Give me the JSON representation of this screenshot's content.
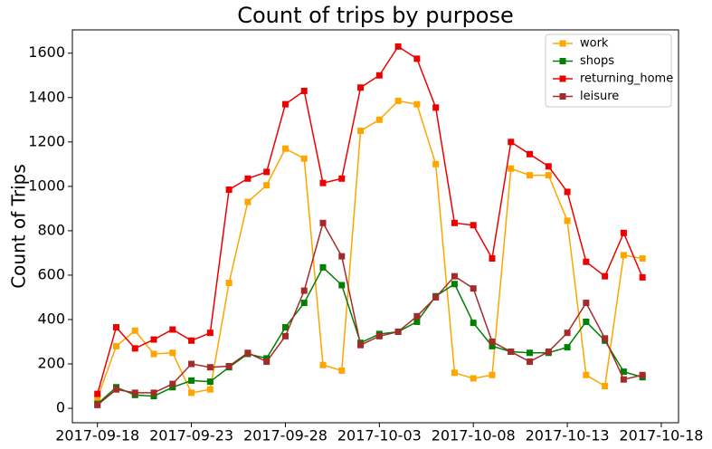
{
  "chart_data": {
    "type": "line",
    "title": "Count of trips by purpose",
    "y_label": "Count of Trips",
    "x": [
      "2017-09-18",
      "2017-09-19",
      "2017-09-20",
      "2017-09-21",
      "2017-09-22",
      "2017-09-23",
      "2017-09-24",
      "2017-09-25",
      "2017-09-26",
      "2017-09-27",
      "2017-09-28",
      "2017-09-29",
      "2017-09-30",
      "2017-10-01",
      "2017-10-02",
      "2017-10-03",
      "2017-10-04",
      "2017-10-05",
      "2017-10-06",
      "2017-10-07",
      "2017-10-08",
      "2017-10-09",
      "2017-10-10",
      "2017-10-11",
      "2017-10-12",
      "2017-10-13",
      "2017-10-14",
      "2017-10-15",
      "2017-10-16",
      "2017-10-17"
    ],
    "series": [
      {
        "name": "work",
        "color": "#ffa500",
        "values": [
          45,
          280,
          350,
          245,
          250,
          70,
          85,
          565,
          930,
          1005,
          1170,
          1125,
          195,
          170,
          1250,
          1300,
          1385,
          1370,
          1100,
          160,
          135,
          150,
          1080,
          1050,
          1050,
          845,
          150,
          100,
          690,
          675
        ]
      },
      {
        "name": "shops",
        "color": "#008000",
        "values": [
          20,
          95,
          60,
          55,
          95,
          125,
          120,
          185,
          245,
          225,
          365,
          475,
          635,
          555,
          295,
          335,
          345,
          390,
          505,
          560,
          385,
          280,
          255,
          250,
          250,
          275,
          390,
          305,
          165,
          140
        ]
      },
      {
        "name": "returning_home",
        "color": "#ee0000",
        "values": [
          65,
          365,
          270,
          310,
          355,
          305,
          340,
          985,
          1035,
          1065,
          1370,
          1430,
          1015,
          1035,
          1445,
          1500,
          1630,
          1575,
          1355,
          835,
          825,
          675,
          1200,
          1145,
          1090,
          975,
          660,
          595,
          790,
          590
        ]
      },
      {
        "name": "leisure",
        "color": "#a52a2a",
        "values": [
          15,
          85,
          70,
          70,
          110,
          200,
          185,
          190,
          250,
          210,
          325,
          530,
          835,
          685,
          285,
          325,
          345,
          415,
          500,
          595,
          540,
          300,
          255,
          210,
          255,
          340,
          475,
          315,
          130,
          150
        ]
      }
    ],
    "xlim": [
      "2017-09-16T16:00:00Z",
      "2017-10-18T22:00:00Z"
    ],
    "xticks": [
      "2017-09-18",
      "2017-09-23",
      "2017-09-28",
      "2017-10-03",
      "2017-10-08",
      "2017-10-13",
      "2017-10-18"
    ],
    "ylim": [
      -65,
      1705
    ],
    "yticks": [
      0,
      200,
      400,
      600,
      800,
      1000,
      1200,
      1400,
      1600
    ],
    "legend": "upper right"
  }
}
